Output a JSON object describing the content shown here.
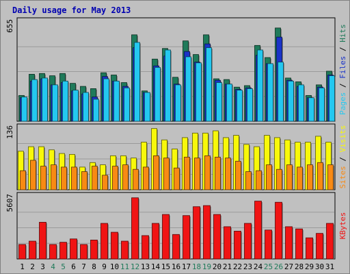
{
  "chart_data": {
    "type": "bar",
    "title": "Daily usage for May 2013",
    "categories": [
      "1",
      "2",
      "3",
      "4",
      "5",
      "6",
      "7",
      "8",
      "9",
      "10",
      "11",
      "12",
      "13",
      "14",
      "15",
      "16",
      "17",
      "18",
      "19",
      "20",
      "21",
      "22",
      "23",
      "24",
      "25",
      "26",
      "27",
      "28",
      "29",
      "30",
      "31"
    ],
    "weekend_days": [
      "4",
      "5",
      "11",
      "12",
      "18",
      "19",
      "25",
      "26"
    ],
    "panels": [
      {
        "name": "hits-files-pages",
        "max_label": "655",
        "ymax": 655,
        "legend": [
          "Pages",
          "Files",
          "Hits"
        ],
        "series": [
          {
            "name": "Hits",
            "color": "#1f7a5a",
            "values": [
              170,
              310,
              315,
              300,
              315,
              250,
              230,
              215,
              320,
              305,
              255,
              570,
              200,
              410,
              480,
              290,
              530,
              440,
              570,
              280,
              275,
              225,
              235,
              500,
              420,
              615,
              285,
              260,
              170,
              240,
              330
            ]
          },
          {
            "name": "Files",
            "color": "#1a33c8",
            "values": [
              155,
              265,
              280,
              240,
              255,
              200,
              180,
              160,
              295,
              265,
              230,
              485,
              190,
              365,
              430,
              245,
              460,
              390,
              510,
              270,
              245,
              210,
              220,
              435,
              380,
              555,
              270,
              230,
              155,
              225,
              305
            ]
          },
          {
            "name": "Pages",
            "color": "#24c8f0",
            "values": [
              160,
              275,
              285,
              240,
              265,
              205,
              190,
              145,
              280,
              265,
              220,
              520,
              190,
              355,
              470,
              240,
              425,
              385,
              485,
              255,
              245,
              205,
              215,
              470,
              380,
              390,
              265,
              240,
              155,
              220,
              300
            ]
          }
        ]
      },
      {
        "name": "visits-sites",
        "max_label": "136",
        "ymax": 136,
        "legend": [
          "Sites",
          "Visits"
        ],
        "series": [
          {
            "name": "Visits",
            "color": "#f8f80a",
            "values": [
              85,
              95,
              95,
              88,
              80,
              78,
              50,
              60,
              55,
              75,
              75,
              70,
              105,
              135,
              110,
              90,
              115,
              125,
              125,
              130,
              115,
              120,
              100,
              95,
              120,
              115,
              110,
              105,
              105,
              118,
              105
            ]
          },
          {
            "name": "Sites",
            "color": "#f88a14",
            "values": [
              42,
              65,
              52,
              55,
              50,
              50,
              40,
              52,
              32,
              52,
              55,
              45,
              50,
              75,
              70,
              48,
              72,
              70,
              75,
              72,
              70,
              63,
              40,
              42,
              55,
              45,
              55,
              50,
              55,
              60,
              55
            ]
          }
        ]
      },
      {
        "name": "kbytes",
        "max_label": "5607",
        "ymax": 5607,
        "legend": [
          "KBytes"
        ],
        "series": [
          {
            "name": "KBytes",
            "color": "#f01414",
            "values": [
              1300,
              1600,
              3300,
              1300,
              1500,
              1800,
              1300,
              1700,
              3200,
              2400,
              1600,
              5500,
              2100,
              3200,
              4000,
              2200,
              3900,
              4700,
              4800,
              4000,
              2900,
              2500,
              3200,
              5200,
              2600,
              5100,
              2900,
              2700,
              1900,
              2300,
              3200
            ]
          }
        ]
      }
    ]
  }
}
